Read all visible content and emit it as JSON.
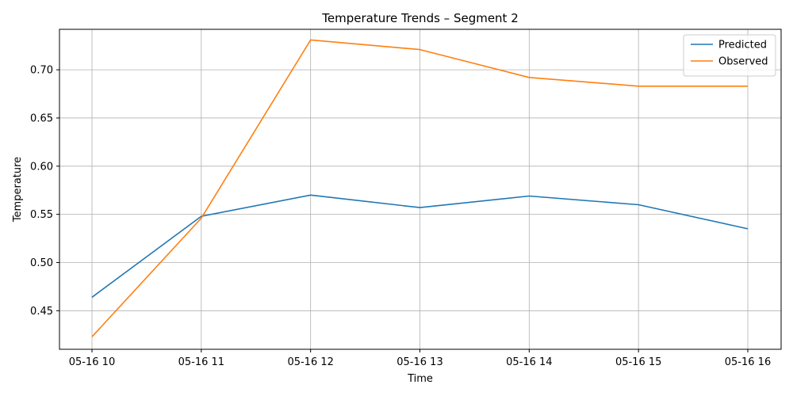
{
  "chart_data": {
    "type": "line",
    "title": "Temperature Trends – Segment 2",
    "xlabel": "Time",
    "ylabel": "Temperature",
    "x": [
      "05-16 10",
      "05-16 11",
      "05-16 12",
      "05-16 13",
      "05-16 14",
      "05-16 15",
      "05-16 16"
    ],
    "ylim": [
      0.41,
      0.742
    ],
    "yticks": [
      "0.45",
      "0.50",
      "0.55",
      "0.60",
      "0.65",
      "0.70"
    ],
    "grid": true,
    "legend_position": "upper right",
    "series": [
      {
        "name": "Predicted",
        "color": "#1f77b4",
        "values": [
          0.464,
          0.548,
          0.57,
          0.557,
          0.569,
          0.56,
          0.535
        ]
      },
      {
        "name": "Observed",
        "color": "#ff7f0e",
        "values": [
          0.423,
          0.546,
          0.731,
          0.721,
          0.692,
          0.683,
          0.683
        ]
      }
    ]
  }
}
